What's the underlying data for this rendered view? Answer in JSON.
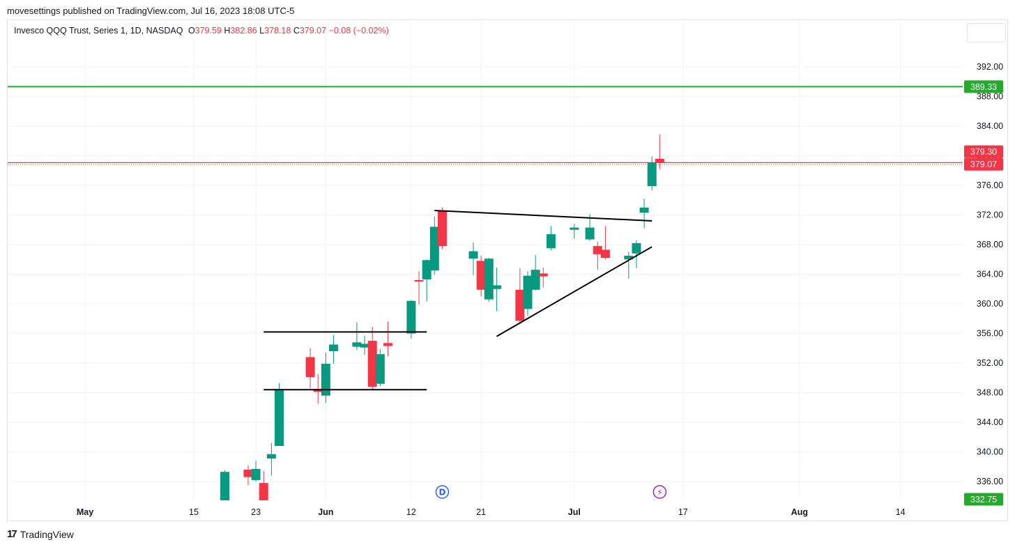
{
  "publish_line": "movesettings published on TradingView.com, Jul 16, 2023 18:08 UTC-5",
  "legend": {
    "symbol": "Invesco QQQ Trust, Series 1, 1D, NASDAQ",
    "open_label": "O",
    "open": "379.59",
    "high_label": "H",
    "high": "382.86",
    "low_label": "L",
    "low": "378.18",
    "close_label": "C",
    "close": "379.07",
    "change": "−0.08 (−0.02%)"
  },
  "colors": {
    "up": "#089981",
    "down": "#f23645",
    "grid": "#f0f3fa",
    "hline_green": "#22ab2a",
    "hline_red": "#f23645",
    "event_d": "#2962ff",
    "event_bolt": "#9c27b0"
  },
  "footer": {
    "logo_mark": "17",
    "logo_text": "TradingView"
  },
  "chart_data": {
    "type": "candlestick",
    "ylim": [
      333.0,
      395.0
    ],
    "yticks": [
      336,
      340,
      344,
      348,
      352,
      356,
      360,
      364,
      368,
      372,
      376,
      380,
      384,
      388,
      392
    ],
    "ytick_labels": [
      "336.00",
      "340.00",
      "344.00",
      "348.00",
      "352.00",
      "356.00",
      "360.00",
      "364.00",
      "368.00",
      "372.00",
      "376.00",
      "380.00",
      "384.00",
      "388.00",
      "392.00"
    ],
    "xticks": [
      {
        "label": "May",
        "date": "2023-05-01",
        "bold": true
      },
      {
        "label": "15",
        "date": "2023-05-15",
        "bold": false
      },
      {
        "label": "23",
        "date": "2023-05-23",
        "bold": false
      },
      {
        "label": "Jun",
        "date": "2023-06-01",
        "bold": true
      },
      {
        "label": "12",
        "date": "2023-06-12",
        "bold": false
      },
      {
        "label": "21",
        "date": "2023-06-21",
        "bold": false
      },
      {
        "label": "Jul",
        "date": "2023-07-03",
        "bold": true
      },
      {
        "label": "17",
        "date": "2023-07-17",
        "bold": false
      },
      {
        "label": "Aug",
        "date": "2023-08-01",
        "bold": true
      },
      {
        "label": "14",
        "date": "2023-08-14",
        "bold": false
      }
    ],
    "candles": [
      {
        "date": "2023-05-19",
        "o": 333.0,
        "h": 337.5,
        "l": 333.0,
        "c": 337.3
      },
      {
        "date": "2023-05-22",
        "o": 337.6,
        "h": 338.2,
        "l": 335.5,
        "c": 336.6
      },
      {
        "date": "2023-05-23",
        "o": 336.2,
        "h": 338.8,
        "l": 336.0,
        "c": 337.7
      },
      {
        "date": "2023-05-24",
        "o": 335.8,
        "h": 337.4,
        "l": 333.0,
        "c": 333.2
      },
      {
        "date": "2023-05-25",
        "o": 339.1,
        "h": 341.2,
        "l": 336.8,
        "c": 339.7
      },
      {
        "date": "2023-05-26",
        "o": 340.8,
        "h": 349.3,
        "l": 340.8,
        "c": 348.5
      },
      {
        "date": "2023-05-30",
        "o": 352.8,
        "h": 354.0,
        "l": 348.6,
        "c": 350.1
      },
      {
        "date": "2023-05-31",
        "o": 348.5,
        "h": 350.5,
        "l": 346.5,
        "c": 348.1
      },
      {
        "date": "2023-06-01",
        "o": 347.6,
        "h": 353.4,
        "l": 346.6,
        "c": 351.9
      },
      {
        "date": "2023-06-02",
        "o": 353.6,
        "h": 355.8,
        "l": 351.9,
        "c": 354.5
      },
      {
        "date": "2023-06-05",
        "o": 354.2,
        "h": 357.5,
        "l": 353.8,
        "c": 354.8
      },
      {
        "date": "2023-06-06",
        "o": 354.1,
        "h": 355.7,
        "l": 353.1,
        "c": 354.6
      },
      {
        "date": "2023-06-07",
        "o": 355.0,
        "h": 356.9,
        "l": 348.3,
        "c": 348.8
      },
      {
        "date": "2023-06-08",
        "o": 349.2,
        "h": 353.9,
        "l": 348.9,
        "c": 353.2
      },
      {
        "date": "2023-06-09",
        "o": 354.7,
        "h": 357.6,
        "l": 352.9,
        "c": 354.3
      },
      {
        "date": "2023-06-12",
        "o": 356.0,
        "h": 360.5,
        "l": 355.3,
        "c": 360.4
      },
      {
        "date": "2023-06-13",
        "o": 363.2,
        "h": 364.4,
        "l": 359.9,
        "c": 363.0
      },
      {
        "date": "2023-06-14",
        "o": 363.3,
        "h": 366.0,
        "l": 360.3,
        "c": 365.9
      },
      {
        "date": "2023-06-15",
        "o": 364.5,
        "h": 371.8,
        "l": 363.9,
        "c": 370.4
      },
      {
        "date": "2023-06-16",
        "o": 372.6,
        "h": 373.0,
        "l": 367.4,
        "c": 367.8
      },
      {
        "date": "2023-06-20",
        "o": 366.1,
        "h": 368.3,
        "l": 363.9,
        "c": 367.1
      },
      {
        "date": "2023-06-21",
        "o": 365.8,
        "h": 366.5,
        "l": 361.0,
        "c": 361.9
      },
      {
        "date": "2023-06-22",
        "o": 360.6,
        "h": 366.2,
        "l": 360.3,
        "c": 366.1
      },
      {
        "date": "2023-06-23",
        "o": 362.0,
        "h": 364.9,
        "l": 359.0,
        "c": 362.5
      },
      {
        "date": "2023-06-26",
        "o": 361.9,
        "h": 364.8,
        "l": 357.5,
        "c": 357.7
      },
      {
        "date": "2023-06-27",
        "o": 359.3,
        "h": 364.4,
        "l": 358.4,
        "c": 363.8
      },
      {
        "date": "2023-06-28",
        "o": 361.9,
        "h": 366.6,
        "l": 361.8,
        "c": 364.6
      },
      {
        "date": "2023-06-29",
        "o": 364.1,
        "h": 364.9,
        "l": 362.2,
        "c": 363.7
      },
      {
        "date": "2023-06-30",
        "o": 367.5,
        "h": 370.5,
        "l": 367.2,
        "c": 369.4
      },
      {
        "date": "2023-07-03",
        "o": 370.0,
        "h": 370.8,
        "l": 368.8,
        "c": 370.3
      },
      {
        "date": "2023-07-05",
        "o": 368.7,
        "h": 372.1,
        "l": 368.5,
        "c": 370.3
      },
      {
        "date": "2023-07-06",
        "o": 367.8,
        "h": 368.4,
        "l": 364.6,
        "c": 366.7
      },
      {
        "date": "2023-07-07",
        "o": 367.3,
        "h": 370.5,
        "l": 366.0,
        "c": 366.2
      },
      {
        "date": "2023-07-10",
        "o": 366.0,
        "h": 367.0,
        "l": 363.4,
        "c": 366.5
      },
      {
        "date": "2023-07-11",
        "o": 366.8,
        "h": 368.6,
        "l": 364.8,
        "c": 368.2
      },
      {
        "date": "2023-07-12",
        "o": 372.3,
        "h": 374.2,
        "l": 370.2,
        "c": 373.0
      },
      {
        "date": "2023-07-13",
        "o": 375.9,
        "h": 379.9,
        "l": 375.3,
        "c": 379.1
      },
      {
        "date": "2023-07-14",
        "o": 379.59,
        "h": 382.86,
        "l": 378.18,
        "c": 379.07
      }
    ],
    "trend_lines": [
      {
        "name": "range-top",
        "from": {
          "date": "2023-05-24",
          "price": 356.2
        },
        "to": {
          "date": "2023-06-14",
          "price": 356.2
        }
      },
      {
        "name": "range-bottom",
        "from": {
          "date": "2023-05-24",
          "price": 348.4
        },
        "to": {
          "date": "2023-06-14",
          "price": 348.4
        }
      },
      {
        "name": "triangle-top",
        "from": {
          "date": "2023-06-15",
          "price": 372.6
        },
        "to": {
          "date": "2023-07-13",
          "price": 371.2
        }
      },
      {
        "name": "triangle-bottom",
        "from": {
          "date": "2023-06-23",
          "price": 355.6
        },
        "to": {
          "date": "2023-07-13",
          "price": 367.7
        }
      }
    ],
    "horizontal_lines": [
      {
        "price": 389.33,
        "label": "389.33",
        "color": "#22ab2a"
      }
    ],
    "price_lines": [
      {
        "price": 379.07,
        "label": "379.07",
        "color": "#f23645"
      }
    ],
    "price_tags": [
      {
        "price": 379.3,
        "label": "379.30",
        "color": "#f23645"
      },
      {
        "price": 332.75,
        "label": "332.75",
        "color": "#22ab2a"
      }
    ],
    "events": [
      {
        "date": "2023-06-16",
        "symbol": "D",
        "color": "#2962ff"
      },
      {
        "date": "2023-07-14",
        "symbol": "⚡",
        "color": "#9c27b0"
      }
    ]
  }
}
